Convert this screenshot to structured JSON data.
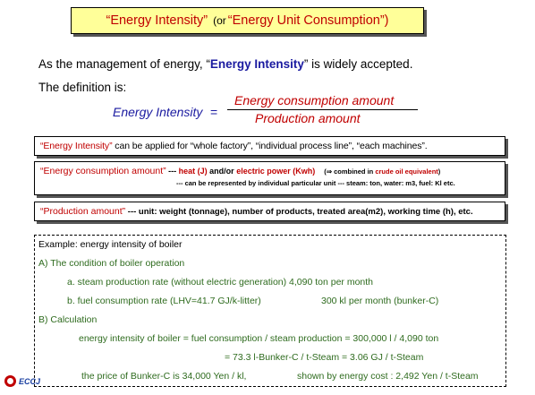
{
  "title": {
    "part1": "“Energy Intensity”",
    "or": "(or",
    "part2": "“Energy Unit Consumption”)"
  },
  "intro": {
    "line1_pre": "As the management of energy, “",
    "line1_bold": "Energy Intensity",
    "line1_post": "” is widely accepted.",
    "line2": "The definition is:"
  },
  "formula": {
    "lhs": "Energy Intensity",
    "equals": "=",
    "numerator": "Energy consumption amount",
    "denominator": "Production amount"
  },
  "definitions": {
    "box1_key": "“Energy Intensity”",
    "box1_text": " can be applied for “whole factory”, “individual process line”, “each machines”.",
    "box2_key": "“Energy consumption amount”",
    "box2_dash": " --- ",
    "box2_heat": "heat (J)",
    "box2_andor": " and/or ",
    "box2_elec": "electric power (Kwh)",
    "box2_paren": "(⇒ combined in ",
    "box2_crude": "crude oil equivalent",
    "box2_close": ")",
    "box2_line2": "--- can be represented  by individual particular unit --- steam: ton,  water: m3,  fuel: Kl etc.",
    "box3_key": "“Production amount”",
    "box3_text": " --- unit: weight (tonnage), number of products, treated area(m2), working time (h), etc."
  },
  "example": {
    "heading": "Example: energy intensity of boiler",
    "a_heading": "A) The condition of boiler operation",
    "a_line1": "a. steam production rate (without electric generation) 4,090 ton per month",
    "a_line2_left": "b. fuel consumption rate (LHV=41.7 GJ/k-litter)",
    "a_line2_right": "300 kl per month   (bunker-C)",
    "b_heading": "B) Calculation",
    "b_line1": "energy intensity of boiler = fuel consumption / steam production = 300,000 l / 4,090 ton",
    "b_line2": "= 73.3 l-Bunker-C / t-Steam = 3.06 GJ / t-Steam",
    "b_line3_left": "the price of Bunker-C is 34,000 Yen / kl,",
    "b_line3_right": "shown by energy cost : 2,492 Yen / t-Steam"
  },
  "logo": {
    "text": "ECCJ"
  }
}
